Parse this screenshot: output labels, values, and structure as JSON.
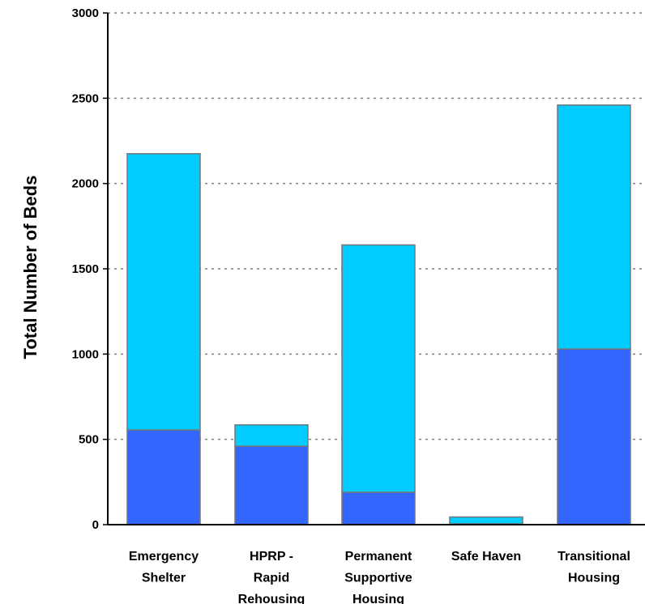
{
  "chart_data": {
    "type": "bar",
    "stacked": true,
    "title": "",
    "xlabel": "",
    "ylabel": "Total Number of Beds",
    "ylim": [
      0,
      3000
    ],
    "yticks": [
      0,
      500,
      1000,
      1500,
      2000,
      2500,
      3000
    ],
    "grid": "horizontal dotted",
    "legend": "none",
    "categories": [
      [
        "Emergency",
        "Shelter"
      ],
      [
        "HPRP -",
        "Rapid",
        "Rehousing"
      ],
      [
        "Permanent",
        "Supportive",
        "Housing"
      ],
      [
        "Safe Haven"
      ],
      [
        "Transitional",
        "Housing"
      ]
    ],
    "series": [
      {
        "values": [
          555,
          460,
          190,
          5,
          1030
        ],
        "color": "#3366ff"
      },
      {
        "values": [
          1620,
          125,
          1450,
          40,
          1430
        ],
        "color": "#00ccff"
      }
    ],
    "totals": [
      2175,
      585,
      1640,
      45,
      2460
    ]
  },
  "colors": {
    "axis": "#000000",
    "grid": "#808080",
    "bar_border": "#777777"
  }
}
